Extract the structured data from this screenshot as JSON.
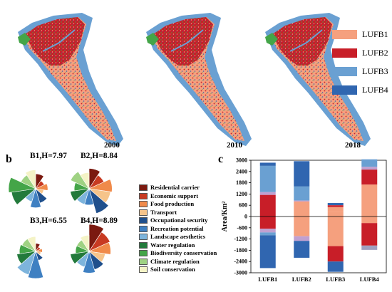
{
  "figure": {
    "panel_a_label": "a",
    "panel_b_label": "b",
    "panel_c_label": "c"
  },
  "maps": {
    "years": [
      "2000",
      "2010",
      "2018"
    ],
    "legend": [
      {
        "label": "LUFB1",
        "color": "#f5a07e"
      },
      {
        "label": "LUFB2",
        "color": "#c81e28"
      },
      {
        "label": "LUFB3",
        "color": "#6aa0d2"
      },
      {
        "label": "LUFB4",
        "color": "#3066b0"
      }
    ]
  },
  "roses": [
    {
      "title": "B1,H=7.97",
      "radii": [
        0.55,
        0.35,
        0.45,
        0.3,
        0.55,
        0.7,
        0.5,
        0.9,
        1.0,
        0.6,
        0.7
      ]
    },
    {
      "title": "B2,H=8.84",
      "radii": [
        0.75,
        0.6,
        0.85,
        0.8,
        0.95,
        0.6,
        0.6,
        0.7,
        0.55,
        0.75,
        0.6
      ]
    },
    {
      "title": "B3,H=6.55",
      "radii": [
        0.3,
        0.2,
        0.25,
        0.2,
        0.35,
        1.0,
        0.9,
        0.7,
        0.6,
        0.55,
        0.55
      ]
    },
    {
      "title": "B4,H=8.89",
      "radii": [
        1.0,
        0.85,
        0.8,
        0.6,
        0.7,
        0.8,
        0.6,
        0.7,
        0.5,
        0.5,
        0.6
      ]
    }
  ],
  "services": [
    {
      "label": "Residential carrier",
      "color": "#7b1a10"
    },
    {
      "label": "Economic support",
      "color": "#c83a22"
    },
    {
      "label": "Food production",
      "color": "#f08a4a"
    },
    {
      "label": "Transport",
      "color": "#f6c48a"
    },
    {
      "label": "Occupational security",
      "color": "#1f4f8c"
    },
    {
      "label": "Recreation potential",
      "color": "#3f80c2"
    },
    {
      "label": "Landscape aesthetics",
      "color": "#7db4dc"
    },
    {
      "label": "Water regulation",
      "color": "#237a3c"
    },
    {
      "label": "Biodiversity conservation",
      "color": "#44a548"
    },
    {
      "label": "Climate regulation",
      "color": "#9fd283"
    },
    {
      "label": "Soil conservation",
      "color": "#f4f3c6"
    }
  ],
  "chart_data": {
    "type": "bar",
    "ylabel": "Area/Km²",
    "ylim": [
      -3000,
      3000
    ],
    "yticks": [
      3000,
      2400,
      1800,
      1200,
      600,
      0,
      -600,
      -1200,
      -1800,
      -2400,
      -3000
    ],
    "categories": [
      "LUFB1",
      "LUFB2",
      "LUFB3",
      "LUFB4"
    ],
    "stacked": true,
    "segments": [
      [
        {
          "from": 2870,
          "to": 2700,
          "color": "#3066b0"
        },
        {
          "from": 2700,
          "to": 1300,
          "color": "#6aa0d2"
        },
        {
          "from": 1300,
          "to": 1150,
          "color": "#c0a0d0"
        },
        {
          "from": 1150,
          "to": -650,
          "color": "#c81e28"
        },
        {
          "from": -650,
          "to": -850,
          "color": "#c0a0d0"
        },
        {
          "from": -850,
          "to": -1000,
          "color": "#6aa0d2"
        },
        {
          "from": -1000,
          "to": -2750,
          "color": "#3066b0"
        }
      ],
      [
        {
          "from": 2950,
          "to": 1600,
          "color": "#3066b0"
        },
        {
          "from": 1600,
          "to": 850,
          "color": "#6aa0d2"
        },
        {
          "from": 850,
          "to": 800,
          "color": "#c0a0d0"
        },
        {
          "from": 800,
          "to": -1050,
          "color": "#f5a07e"
        },
        {
          "from": -1050,
          "to": -1300,
          "color": "#c0a0d0"
        },
        {
          "from": -1300,
          "to": -2200,
          "color": "#3066b0"
        }
      ],
      [
        {
          "from": 720,
          "to": 600,
          "color": "#3066b0"
        },
        {
          "from": 600,
          "to": 500,
          "color": "#c81e28"
        },
        {
          "from": 500,
          "to": 250,
          "color": "#f5a07e"
        },
        {
          "from": 250,
          "to": -1580,
          "color": "#f5a07e"
        },
        {
          "from": -1580,
          "to": -2400,
          "color": "#c81e28"
        },
        {
          "from": -2400,
          "to": -2950,
          "color": "#3066b0"
        }
      ],
      [
        {
          "from": 3050,
          "to": 2650,
          "color": "#6aa0d2"
        },
        {
          "from": 2650,
          "to": 2500,
          "color": "#c0a0d0"
        },
        {
          "from": 2500,
          "to": 1700,
          "color": "#c81e28"
        },
        {
          "from": 1700,
          "to": -350,
          "color": "#f5a07e"
        },
        {
          "from": -350,
          "to": -1550,
          "color": "#c81e28"
        },
        {
          "from": -1550,
          "to": -1780,
          "color": "#a0a0c0"
        }
      ]
    ]
  }
}
